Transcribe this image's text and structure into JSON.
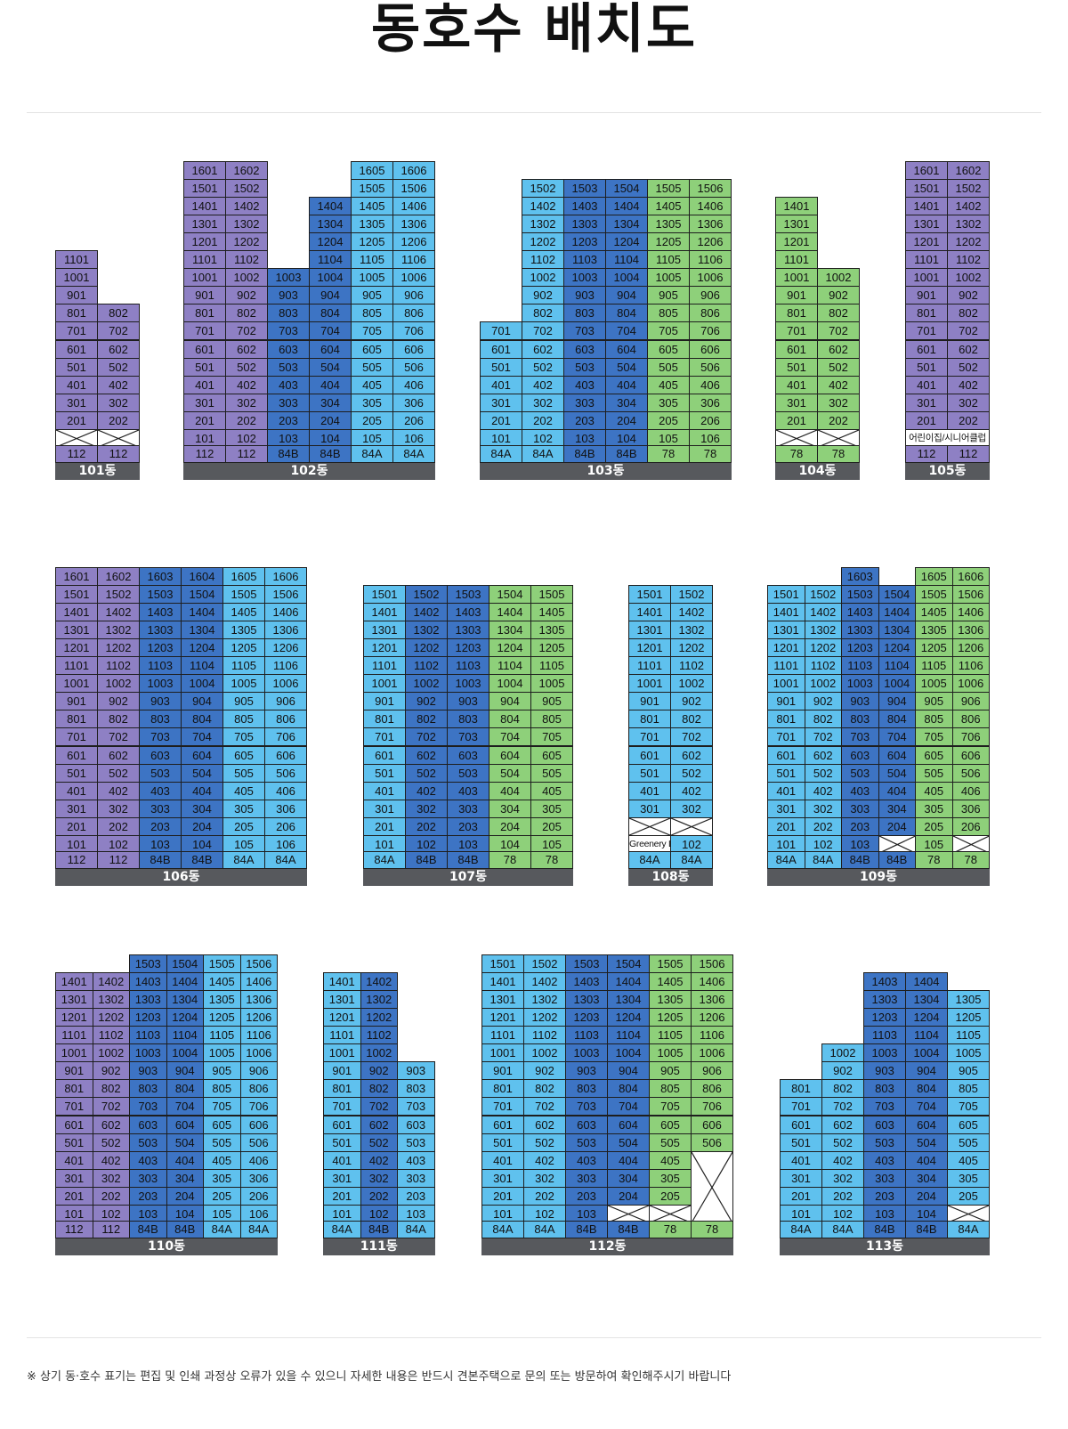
{
  "title": "동호수 배치도",
  "footnote": "※ 상기 동·호수 표기는 편집 및 인쇄 과정상 오류가 있을 수 있으니 자세한 내용은 반드시 견본주택으로 문의 또는 방문하여 확인해주시기 바랍니다",
  "colors": {
    "purple": "#8e80c4",
    "blue": "#3d74c4",
    "sky": "#5fc1ee",
    "green": "#8ed07a",
    "label_bar": "#57595d"
  },
  "buildings": [
    {
      "name": "101동",
      "floors": 11,
      "cols": [
        {
          "type": "112",
          "color": "purple",
          "ground": "x",
          "top": 11,
          "skip": []
        },
        {
          "type": "112",
          "color": "purple",
          "ground": "x",
          "top": 8,
          "skip": []
        }
      ]
    },
    {
      "name": "102동",
      "floors": 16,
      "cols": [
        {
          "type": "112",
          "color": "purple",
          "ground": "",
          "top": 16,
          "skip": []
        },
        {
          "type": "112",
          "color": "purple",
          "ground": "",
          "top": 16,
          "skip": []
        },
        {
          "type": "84B",
          "color": "blue",
          "ground": "",
          "top": 10,
          "skip": []
        },
        {
          "type": "84B",
          "color": "blue",
          "ground": "",
          "top": 14,
          "skip": []
        },
        {
          "type": "84A",
          "color": "sky",
          "ground": "",
          "top": 16,
          "skip": []
        },
        {
          "type": "84A",
          "color": "sky",
          "ground": "",
          "top": 16,
          "skip": []
        }
      ]
    },
    {
      "name": "103동",
      "floors": 15,
      "cols": [
        {
          "type": "84A",
          "color": "sky",
          "ground": "",
          "top": 7,
          "skip": []
        },
        {
          "type": "84A",
          "color": "sky",
          "ground": "",
          "top": 15,
          "skip": []
        },
        {
          "type": "84B",
          "color": "blue",
          "ground": "",
          "top": 15,
          "skip": []
        },
        {
          "type": "84B",
          "color": "blue",
          "ground": "",
          "top": 15,
          "skip": []
        },
        {
          "type": "78",
          "color": "green",
          "ground": "",
          "top": 15,
          "skip": []
        },
        {
          "type": "78",
          "color": "green",
          "ground": "",
          "top": 15,
          "skip": []
        }
      ]
    },
    {
      "name": "104동",
      "floors": 14,
      "cols": [
        {
          "type": "78",
          "color": "green",
          "ground": "x",
          "top": 14,
          "skip": []
        },
        {
          "type": "78",
          "color": "green",
          "ground": "x",
          "top": 10,
          "skip": []
        }
      ]
    },
    {
      "name": "105동",
      "floors": 16,
      "cols": [
        {
          "type": "112",
          "color": "purple",
          "ground": "어린이집/시니어클럽",
          "top": 16,
          "skip": []
        },
        {
          "type": "112",
          "color": "purple",
          "ground": "",
          "top": 16,
          "skip": []
        }
      ]
    },
    {
      "name": "106동",
      "floors": 16,
      "cols": [
        {
          "type": "112",
          "color": "purple",
          "ground": "",
          "top": 16,
          "skip": []
        },
        {
          "type": "112",
          "color": "purple",
          "ground": "",
          "top": 16,
          "skip": []
        },
        {
          "type": "84B",
          "color": "blue",
          "ground": "",
          "top": 16,
          "skip": []
        },
        {
          "type": "84B",
          "color": "blue",
          "ground": "",
          "top": 16,
          "skip": []
        },
        {
          "type": "84A",
          "color": "sky",
          "ground": "",
          "top": 16,
          "skip": []
        },
        {
          "type": "84A",
          "color": "sky",
          "ground": "",
          "top": 16,
          "skip": []
        }
      ]
    },
    {
      "name": "107동",
      "floors": 15,
      "cols": [
        {
          "type": "84A",
          "color": "sky",
          "ground": "",
          "top": 15,
          "skip": []
        },
        {
          "type": "84B",
          "color": "blue",
          "ground": "",
          "top": 15,
          "skip": []
        },
        {
          "type": "84B",
          "color": "blue",
          "ground": "",
          "top": 15,
          "skip": []
        },
        {
          "type": "78",
          "color": "green",
          "ground": "",
          "top": 15,
          "skip": []
        },
        {
          "type": "78",
          "color": "green",
          "ground": "",
          "top": 15,
          "skip": []
        }
      ]
    },
    {
      "name": "108동",
      "floors": 15,
      "cols": [
        {
          "type": "84A",
          "color": "sky",
          "ground": "Greenery Lounge",
          "top": 15,
          "skip": [
            2
          ]
        },
        {
          "type": "84A",
          "color": "sky",
          "ground": "",
          "top": 15,
          "skip": [
            2
          ]
        }
      ]
    },
    {
      "name": "109동",
      "floors": 16,
      "cols": [
        {
          "type": "84A",
          "color": "sky",
          "ground": "",
          "top": 15,
          "skip": []
        },
        {
          "type": "84A",
          "color": "sky",
          "ground": "",
          "top": 15,
          "skip": []
        },
        {
          "type": "84B",
          "color": "blue",
          "ground": "",
          "top": 16,
          "skip": []
        },
        {
          "type": "84B",
          "color": "blue",
          "ground": "x",
          "top": 15,
          "skip": []
        },
        {
          "type": "78",
          "color": "green",
          "ground": "",
          "top": 16,
          "skip": []
        },
        {
          "type": "78",
          "color": "green",
          "ground": "x",
          "top": 16,
          "skip": []
        }
      ]
    },
    {
      "name": "110동",
      "floors": 15,
      "cols": [
        {
          "type": "112",
          "color": "purple",
          "ground": "",
          "top": 14,
          "skip": []
        },
        {
          "type": "112",
          "color": "purple",
          "ground": "",
          "top": 14,
          "skip": []
        },
        {
          "type": "84B",
          "color": "blue",
          "ground": "",
          "top": 15,
          "skip": []
        },
        {
          "type": "84B",
          "color": "blue",
          "ground": "",
          "top": 15,
          "skip": []
        },
        {
          "type": "84A",
          "color": "sky",
          "ground": "",
          "top": 15,
          "skip": []
        },
        {
          "type": "84A",
          "color": "sky",
          "ground": "",
          "top": 15,
          "skip": []
        }
      ]
    },
    {
      "name": "111동",
      "floors": 14,
      "cols": [
        {
          "type": "84A",
          "color": "sky",
          "ground": "",
          "top": 14,
          "skip": []
        },
        {
          "type": "84B",
          "color": "blue",
          "ground": "",
          "top": 14,
          "skip": []
        },
        {
          "type": "84A",
          "color": "sky",
          "ground": "",
          "top": 9,
          "skip": []
        }
      ]
    },
    {
      "name": "112동",
      "floors": 15,
      "cols": [
        {
          "type": "84A",
          "color": "sky",
          "ground": "",
          "top": 15,
          "skip": []
        },
        {
          "type": "84A",
          "color": "sky",
          "ground": "",
          "top": 15,
          "skip": []
        },
        {
          "type": "84B",
          "color": "blue",
          "ground": "",
          "top": 15,
          "skip": []
        },
        {
          "type": "84B",
          "color": "blue",
          "ground": "x",
          "top": 15,
          "skip": []
        },
        {
          "type": "78",
          "color": "green",
          "ground": "x",
          "top": 15,
          "skip": []
        },
        {
          "type": "78",
          "color": "green",
          "ground": "X",
          "top": 15,
          "skip": []
        }
      ]
    },
    {
      "name": "113동",
      "floors": 14,
      "cols": [
        {
          "type": "84A",
          "color": "sky",
          "ground": "",
          "top": 8,
          "skip": []
        },
        {
          "type": "84A",
          "color": "sky",
          "ground": "",
          "top": 10,
          "skip": []
        },
        {
          "type": "84B",
          "color": "blue",
          "ground": "",
          "top": 14,
          "skip": []
        },
        {
          "type": "84B",
          "color": "blue",
          "ground": "",
          "top": 14,
          "skip": []
        },
        {
          "type": "84A",
          "color": "sky",
          "ground": "x",
          "top": 13,
          "skip": []
        }
      ]
    }
  ]
}
